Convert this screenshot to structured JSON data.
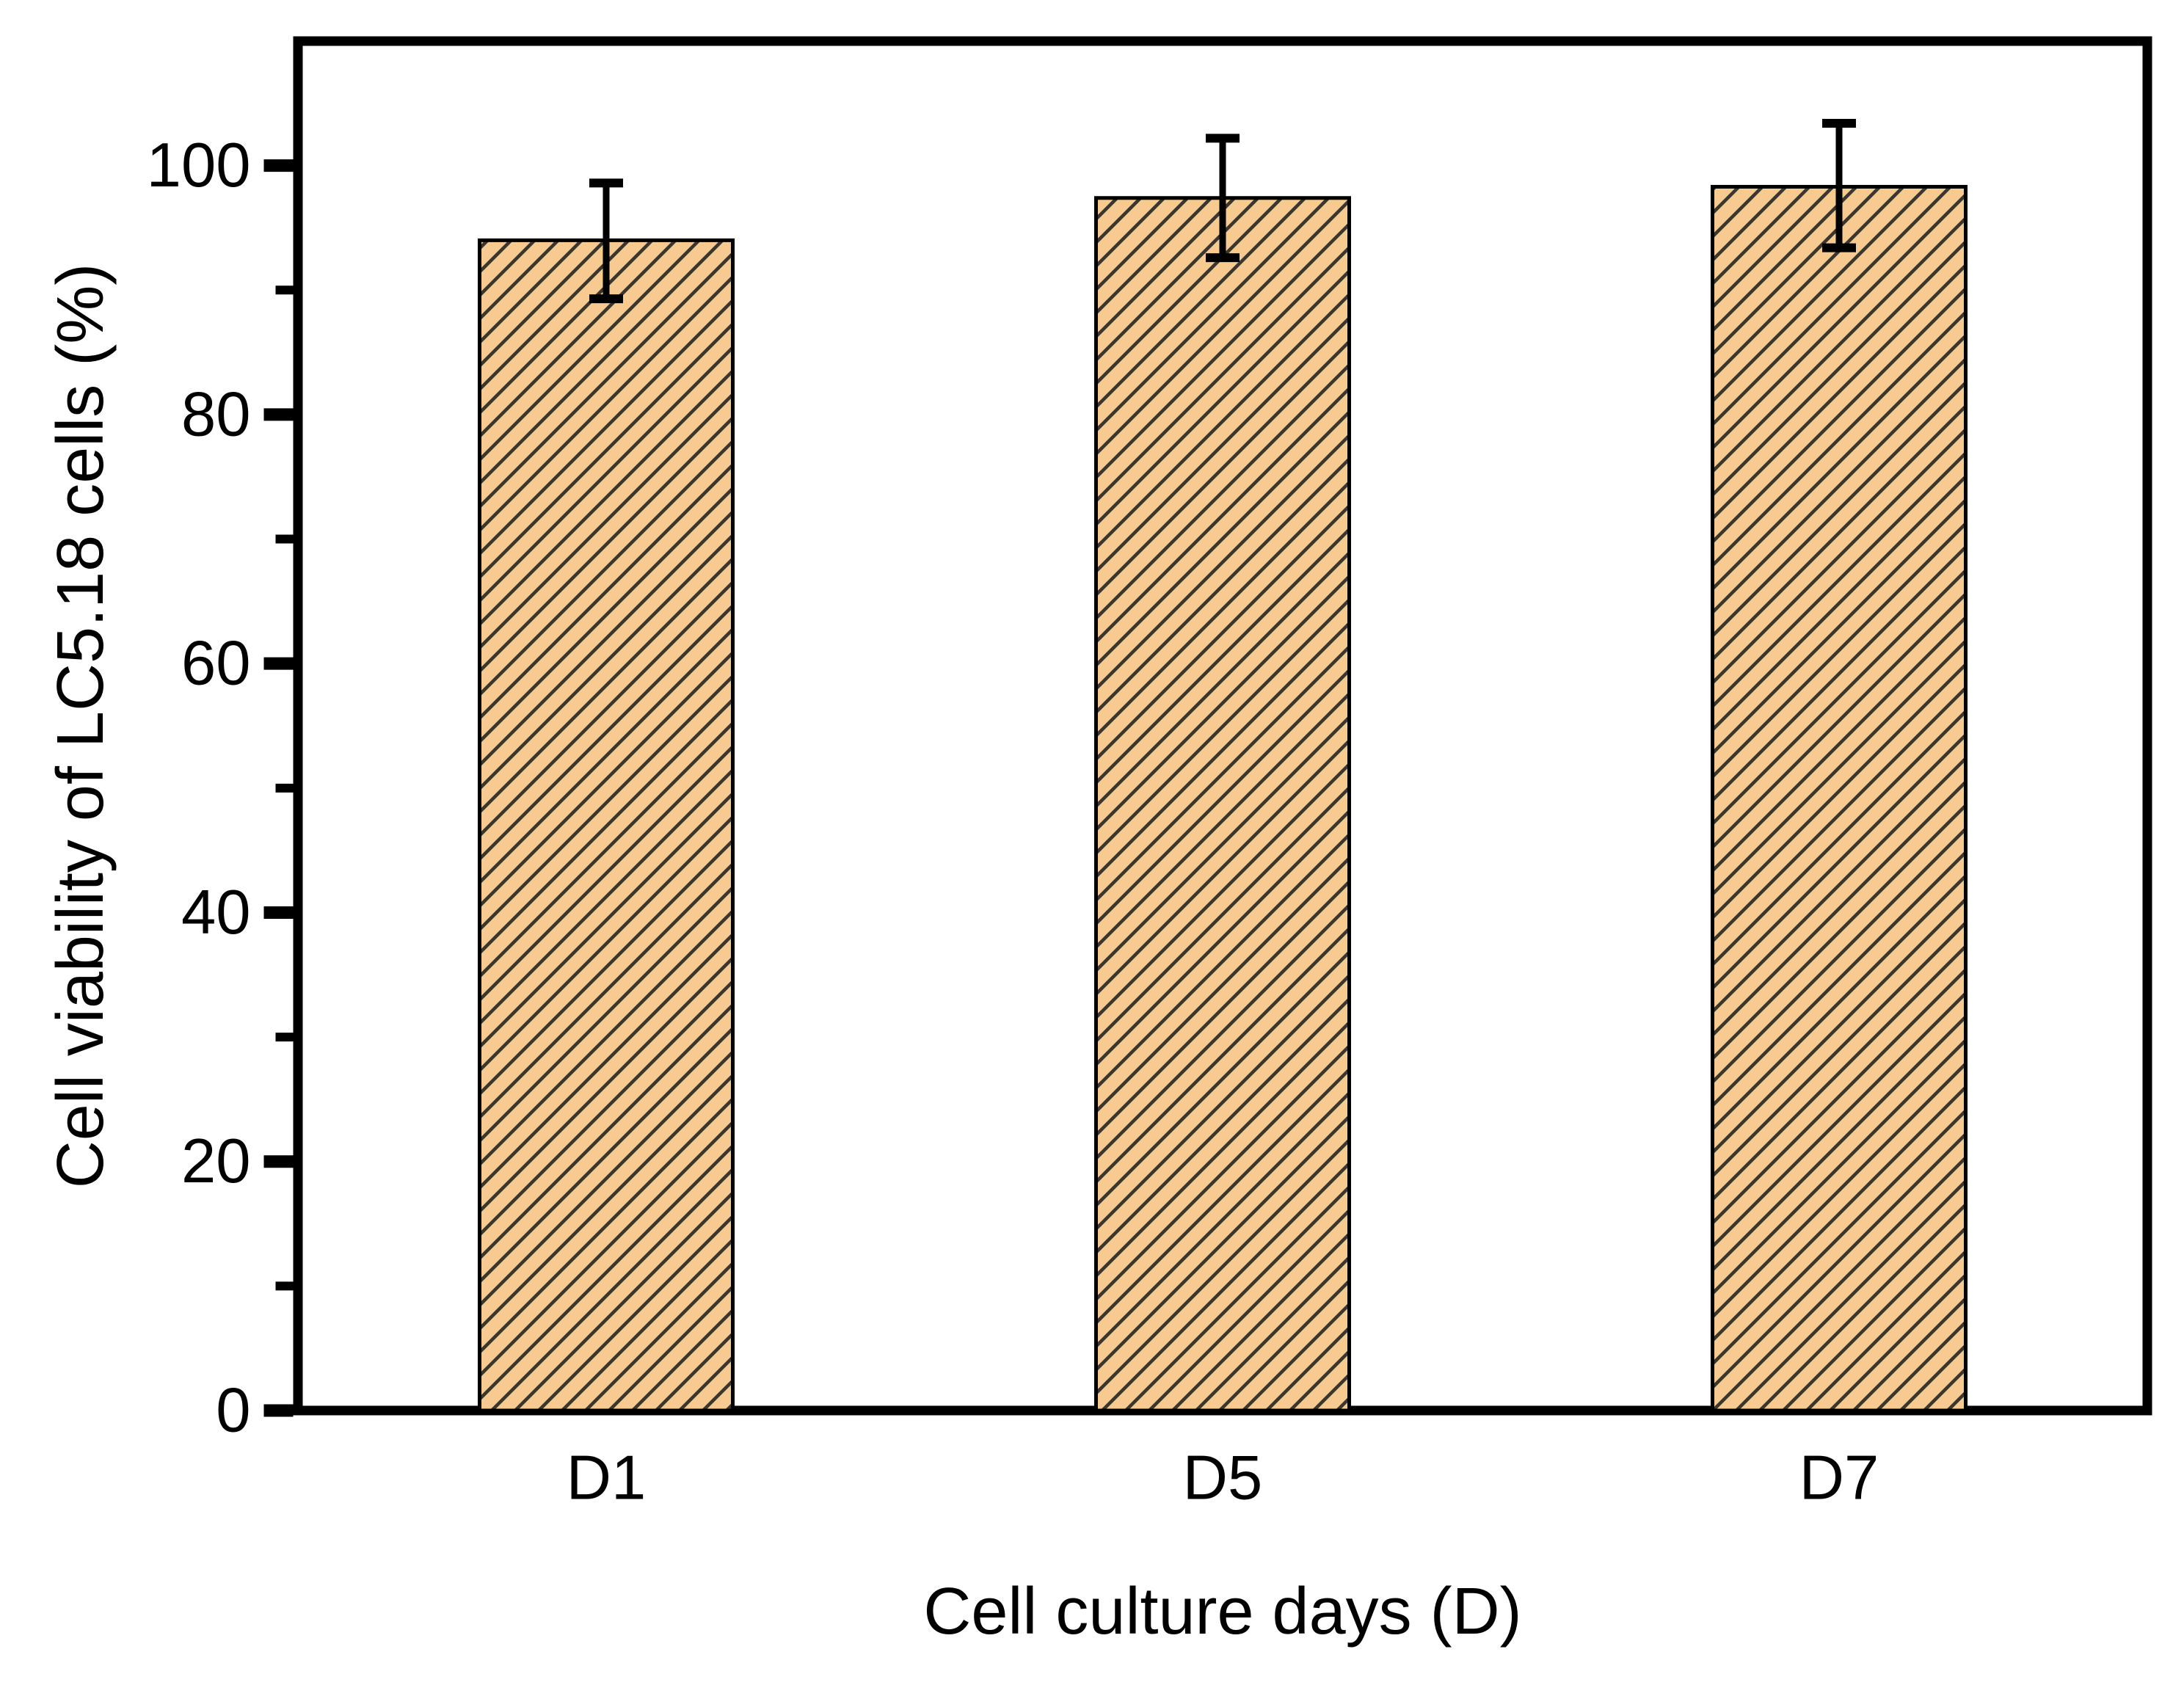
{
  "figure": {
    "background": "#ffffff"
  },
  "chart_data": {
    "type": "bar",
    "title": "",
    "categories": [
      "D1",
      "D5",
      "D7"
    ],
    "series": [
      {
        "name": "Cell viability of LC5.18 cells",
        "values": [
          94.0,
          97.4,
          98.3
        ],
        "errors_plus": [
          4.6,
          4.8,
          5.1
        ],
        "errors_minus": [
          4.7,
          4.8,
          4.9
        ]
      }
    ],
    "xlabel": "Cell culture days (D)",
    "ylabel": "Cell viability of LC5.18 cells (%)",
    "ylim": [
      0,
      110
    ],
    "yticks": [
      0,
      20,
      40,
      60,
      80,
      100
    ],
    "ytick_interval": 20,
    "ytick_minor_interval": 10,
    "grid": false,
    "legend_position": "none",
    "bar_fill_color": "#F7CA90",
    "bar_hatch_style": "diagonal-forward",
    "bar_hatch_color": "#3b362e",
    "bar_edge_color": "#000000",
    "error_bar_color": "#000000",
    "frame_color": "#000000",
    "text_color": "#000000"
  }
}
